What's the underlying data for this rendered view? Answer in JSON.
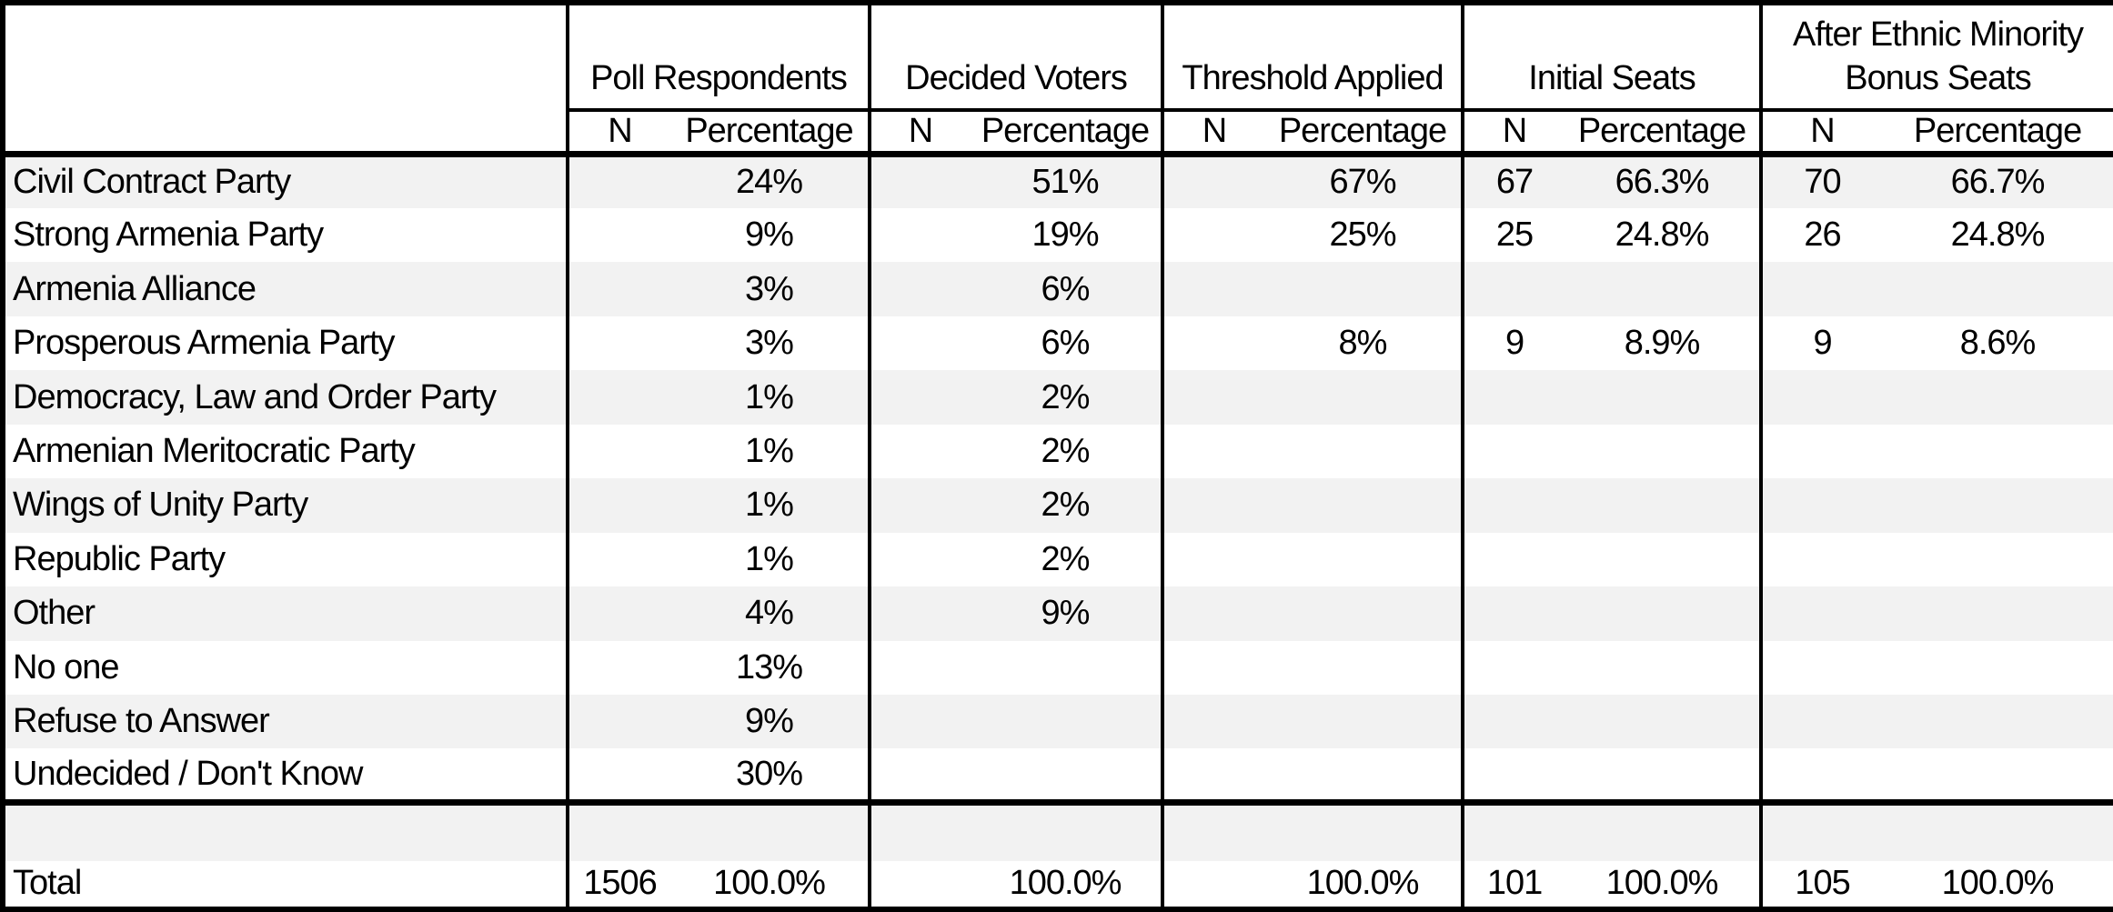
{
  "colors": {
    "stripe": "#f2f2f2",
    "border": "#000000",
    "text": "#000000",
    "background": "#ffffff"
  },
  "table": {
    "corner_label": "",
    "groups": [
      {
        "label": "Poll Respondents",
        "sub": [
          "N",
          "Percentage"
        ]
      },
      {
        "label": "Decided Voters",
        "sub": [
          "N",
          "Percentage"
        ]
      },
      {
        "label": "Threshold Applied",
        "sub": [
          "N",
          "Percentage"
        ]
      },
      {
        "label": "Initial Seats",
        "sub": [
          "N",
          "Percentage"
        ]
      },
      {
        "label": "After Ethnic Minority Bonus Seats",
        "sub": [
          "N",
          "Percentage"
        ]
      }
    ],
    "rows": [
      {
        "kind": "data",
        "label": "Civil Contract Party",
        "cells": [
          "",
          "24%",
          "",
          "51%",
          "",
          "67%",
          "67",
          "66.3%",
          "70",
          "66.7%"
        ]
      },
      {
        "kind": "data",
        "label": "Strong Armenia Party",
        "cells": [
          "",
          "9%",
          "",
          "19%",
          "",
          "25%",
          "25",
          "24.8%",
          "26",
          "24.8%"
        ]
      },
      {
        "kind": "data",
        "label": "Armenia Alliance",
        "cells": [
          "",
          "3%",
          "",
          "6%",
          "",
          "",
          "",
          "",
          "",
          ""
        ]
      },
      {
        "kind": "data",
        "label": "Prosperous Armenia Party",
        "cells": [
          "",
          "3%",
          "",
          "6%",
          "",
          "8%",
          "9",
          "8.9%",
          "9",
          "8.6%"
        ]
      },
      {
        "kind": "data",
        "label": "Democracy, Law and Order Party",
        "cells": [
          "",
          "1%",
          "",
          "2%",
          "",
          "",
          "",
          "",
          "",
          ""
        ]
      },
      {
        "kind": "data",
        "label": "Armenian Meritocratic Party",
        "cells": [
          "",
          "1%",
          "",
          "2%",
          "",
          "",
          "",
          "",
          "",
          ""
        ]
      },
      {
        "kind": "data",
        "label": "Wings of Unity Party",
        "cells": [
          "",
          "1%",
          "",
          "2%",
          "",
          "",
          "",
          "",
          "",
          ""
        ]
      },
      {
        "kind": "data",
        "label": "Republic Party",
        "cells": [
          "",
          "1%",
          "",
          "2%",
          "",
          "",
          "",
          "",
          "",
          ""
        ]
      },
      {
        "kind": "data",
        "label": "Other",
        "cells": [
          "",
          "4%",
          "",
          "9%",
          "",
          "",
          "",
          "",
          "",
          ""
        ]
      },
      {
        "kind": "data",
        "label": "No one",
        "cells": [
          "",
          "13%",
          "",
          "",
          "",
          "",
          "",
          "",
          "",
          ""
        ]
      },
      {
        "kind": "data",
        "label": "Refuse to Answer",
        "cells": [
          "",
          "9%",
          "",
          "",
          "",
          "",
          "",
          "",
          "",
          ""
        ]
      },
      {
        "kind": "data",
        "label": "Undecided / Don't Know",
        "cells": [
          "",
          "30%",
          "",
          "",
          "",
          "",
          "",
          "",
          "",
          ""
        ]
      },
      {
        "kind": "blank",
        "label": "",
        "cells": [
          "",
          "",
          "",
          "",
          "",
          "",
          "",
          "",
          "",
          ""
        ]
      },
      {
        "kind": "total",
        "label": "Total",
        "cells": [
          "1506",
          "100.0%",
          "",
          "100.0%",
          "",
          "100.0%",
          "101",
          "100.0%",
          "105",
          "100.0%"
        ]
      }
    ]
  }
}
